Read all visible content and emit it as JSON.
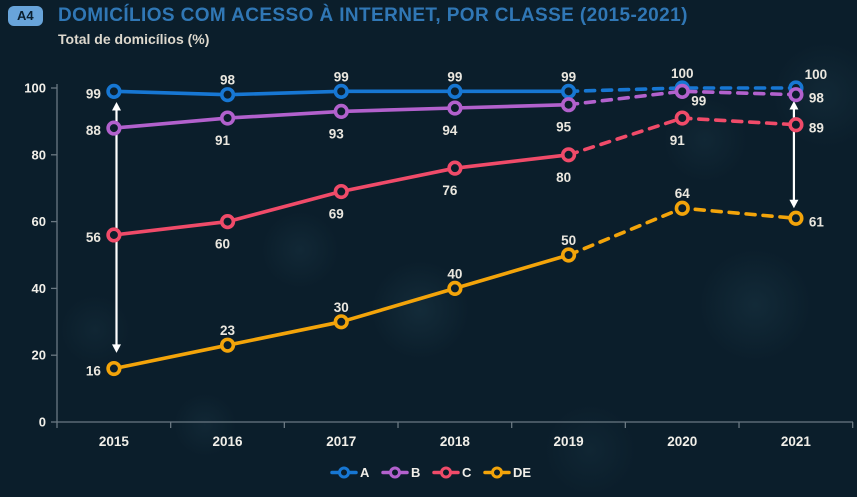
{
  "header": {
    "badge": "A4",
    "title": "DOMICÍLIOS COM ACESSO À INTERNET, POR CLASSE (2015-2021)",
    "subtitle": "Total de domicílios (%)"
  },
  "colors": {
    "background": "#0b1e2b",
    "badge_bg": "#68a4da",
    "badge_text": "#0b2030",
    "title": "#3077b5",
    "subtitle": "#ddd8cd",
    "axis": "#6a7882",
    "tick_label": "#f1efe9",
    "data_label": "#eae7df",
    "arrow": "#ffffff",
    "series": {
      "A": "#1777d3",
      "B": "#b261cd",
      "C": "#f04b69",
      "DE": "#f3a40a"
    }
  },
  "chart_data": {
    "type": "line",
    "title": "DOMICÍLIOS COM ACESSO À INTERNET, POR CLASSE (2015-2021)",
    "subtitle": "Total de domicílios (%)",
    "categories": [
      "2015",
      "2016",
      "2017",
      "2018",
      "2019",
      "2020",
      "2021"
    ],
    "series": [
      {
        "name": "A",
        "color": "#1777d3",
        "values": [
          99,
          98,
          99,
          99,
          99,
          100,
          100
        ],
        "dashed_from_index": 4,
        "label_positions": [
          "left",
          "above",
          "above",
          "above",
          "above",
          "above",
          "aboveright"
        ]
      },
      {
        "name": "B",
        "color": "#b261cd",
        "values": [
          88,
          91,
          93,
          94,
          95,
          99,
          98
        ],
        "dashed_from_index": 4,
        "label_positions": [
          "left",
          "below",
          "below",
          "below",
          "below",
          "belowright",
          "right"
        ]
      },
      {
        "name": "C",
        "color": "#f04b69",
        "values": [
          56,
          60,
          69,
          76,
          80,
          91,
          89
        ],
        "dashed_from_index": 4,
        "label_positions": [
          "left",
          "below",
          "below",
          "below",
          "below",
          "below",
          "right"
        ]
      },
      {
        "name": "DE",
        "color": "#f3a40a",
        "values": [
          16,
          23,
          30,
          40,
          50,
          64,
          61
        ],
        "dashed_from_index": 4,
        "label_positions": [
          "left",
          "above",
          "above",
          "above",
          "above",
          "above",
          "right"
        ]
      }
    ],
    "ylim": [
      0,
      100
    ],
    "yticks": [
      0,
      20,
      40,
      60,
      80,
      100
    ],
    "grid": false,
    "legend_position": "bottom",
    "annotations": [
      {
        "type": "double-arrow",
        "at_category": "2015",
        "x_nudge": 2.6,
        "value_top": 95.8,
        "value_bottom": 20.7
      },
      {
        "type": "double-arrow",
        "at_category": "2021",
        "x_nudge": -2.0,
        "value_top": 96.1,
        "value_bottom": 64.0
      }
    ]
  },
  "legend": {
    "items": [
      {
        "label": "A",
        "color": "#1777d3"
      },
      {
        "label": "B",
        "color": "#b261cd"
      },
      {
        "label": "C",
        "color": "#f04b69"
      },
      {
        "label": "DE",
        "color": "#f3a40a"
      }
    ]
  }
}
